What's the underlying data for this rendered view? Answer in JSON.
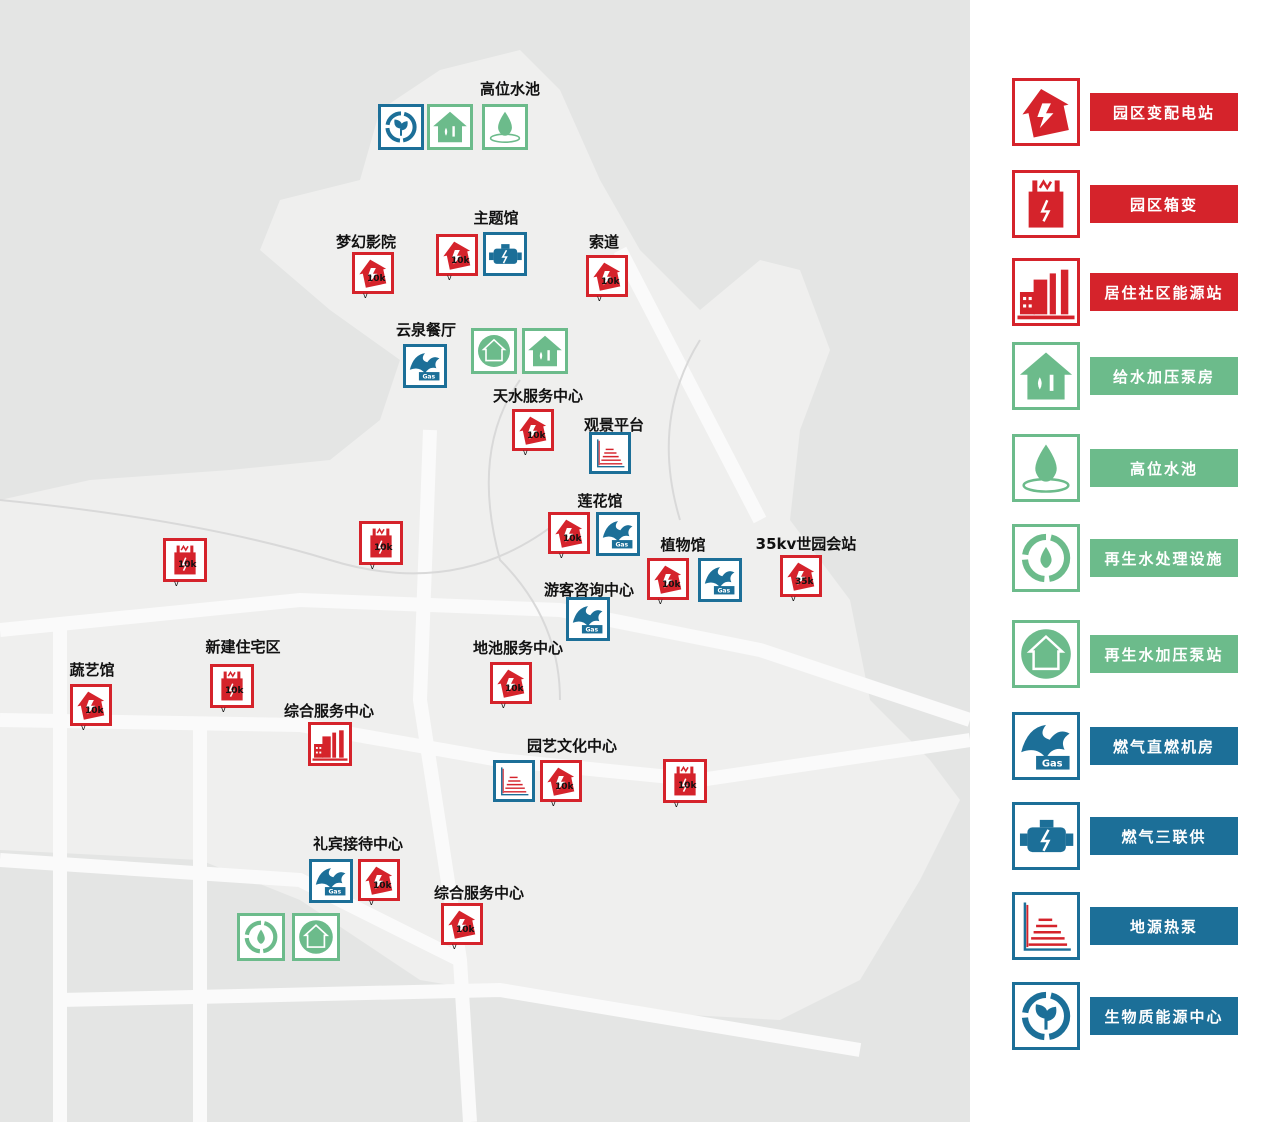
{
  "colors": {
    "power": "#d5232b",
    "water": "#6cbb8b",
    "energy": "#1c6f98",
    "map_bg": "#e4e5e4"
  },
  "legend": [
    {
      "type": "substation",
      "label": "园区变配电站",
      "color": "power"
    },
    {
      "type": "box-transformer",
      "label": "园区箱变",
      "color": "power"
    },
    {
      "type": "community-energy",
      "label": "居住社区能源站",
      "color": "power"
    },
    {
      "type": "water-pump",
      "label": "给水加压泵房",
      "color": "water"
    },
    {
      "type": "high-water-tank",
      "label": "高位水池",
      "color": "water"
    },
    {
      "type": "reclaimed-water",
      "label": "再生水处理设施",
      "color": "water"
    },
    {
      "type": "reclaimed-pump",
      "label": "再生水加压泵站",
      "color": "water"
    },
    {
      "type": "gas-boiler",
      "label": "燃气直燃机房",
      "color": "energy"
    },
    {
      "type": "gas-cchp",
      "label": "燃气三联供",
      "color": "energy"
    },
    {
      "type": "ground-source",
      "label": "地源热泵",
      "color": "energy"
    },
    {
      "type": "biomass",
      "label": "生物质能源中心",
      "color": "energy"
    }
  ],
  "sites": [
    {
      "label": "高位水池",
      "facilities": [
        {
          "type": "biomass"
        },
        {
          "type": "water-pump"
        },
        {
          "type": "high-water-tank"
        }
      ]
    },
    {
      "label": "主题馆",
      "facilities": [
        {
          "type": "substation",
          "rating": "10k",
          "unit": "v"
        },
        {
          "type": "gas-cchp"
        }
      ]
    },
    {
      "label": "梦幻影院",
      "facilities": [
        {
          "type": "substation",
          "rating": "10k",
          "unit": "v"
        }
      ]
    },
    {
      "label": "索道",
      "facilities": [
        {
          "type": "substation",
          "rating": "10k",
          "unit": "v"
        }
      ]
    },
    {
      "label": "云泉餐厅",
      "facilities": [
        {
          "type": "gas-boiler"
        }
      ]
    },
    {
      "label": "",
      "facilities": [
        {
          "type": "reclaimed-pump"
        },
        {
          "type": "water-pump"
        }
      ]
    },
    {
      "label": "天水服务中心",
      "facilities": [
        {
          "type": "substation",
          "rating": "10k",
          "unit": "v"
        }
      ]
    },
    {
      "label": "观景平台",
      "facilities": [
        {
          "type": "ground-source"
        }
      ]
    },
    {
      "label": "莲花馆",
      "facilities": [
        {
          "type": "substation",
          "rating": "10k",
          "unit": "v"
        },
        {
          "type": "gas-boiler"
        }
      ]
    },
    {
      "label": "",
      "facilities": [
        {
          "type": "box-transformer",
          "rating": "10k",
          "unit": "v"
        }
      ]
    },
    {
      "label": "",
      "facilities": [
        {
          "type": "box-transformer",
          "rating": "10k",
          "unit": "v"
        }
      ]
    },
    {
      "label": "植物馆",
      "facilities": [
        {
          "type": "substation",
          "rating": "10k",
          "unit": "v"
        },
        {
          "type": "gas-boiler"
        }
      ]
    },
    {
      "label": "35kv世园会站",
      "facilities": [
        {
          "type": "substation",
          "rating": "35k",
          "unit": "v"
        }
      ]
    },
    {
      "label": "游客咨询中心",
      "facilities": [
        {
          "type": "gas-boiler"
        }
      ]
    },
    {
      "label": "地池服务中心",
      "facilities": [
        {
          "type": "substation",
          "rating": "10k",
          "unit": "v"
        }
      ]
    },
    {
      "label": "新建住宅区",
      "facilities": [
        {
          "type": "box-transformer",
          "rating": "10k",
          "unit": "v"
        }
      ]
    },
    {
      "label": "蔬艺馆",
      "facilities": [
        {
          "type": "substation",
          "rating": "10k",
          "unit": "v"
        }
      ]
    },
    {
      "label": "综合服务中心",
      "facilities": [
        {
          "type": "community-energy"
        }
      ]
    },
    {
      "label": "园艺文化中心",
      "facilities": [
        {
          "type": "ground-source"
        },
        {
          "type": "substation",
          "rating": "10k",
          "unit": "v"
        }
      ]
    },
    {
      "label": "",
      "facilities": [
        {
          "type": "box-transformer",
          "rating": "10k",
          "unit": "v"
        }
      ]
    },
    {
      "label": "礼宾接待中心",
      "facilities": [
        {
          "type": "gas-boiler"
        },
        {
          "type": "substation",
          "rating": "10k",
          "unit": "v"
        }
      ]
    },
    {
      "label": "综合服务中心",
      "facilities": [
        {
          "type": "substation",
          "rating": "10k",
          "unit": "v"
        }
      ]
    },
    {
      "label": "",
      "facilities": [
        {
          "type": "reclaimed-water"
        },
        {
          "type": "reclaimed-pump"
        }
      ]
    }
  ]
}
